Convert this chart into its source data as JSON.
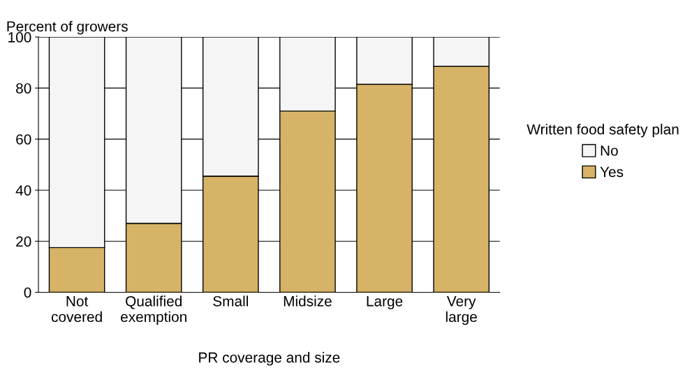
{
  "chart_data": {
    "type": "bar",
    "stacked": true,
    "categories": [
      "Not\ncovered",
      "Qualified\nexemption",
      "Small",
      "Midsize",
      "Large",
      "Very\nlarge"
    ],
    "series": [
      {
        "name": "Yes",
        "color": "#d6b366",
        "values": [
          17.5,
          27,
          45.5,
          71,
          81.5,
          88.5
        ]
      },
      {
        "name": "No",
        "color": "#f4f5f4",
        "values": [
          82.5,
          73,
          54.5,
          29,
          18.5,
          11.5
        ]
      }
    ],
    "xlabel": "PR coverage and size",
    "ylabel": "Percent of growers",
    "legend_title": "Written food safety plan",
    "ylim": [
      0,
      100
    ],
    "yticks": [
      0,
      20,
      40,
      60,
      80,
      100
    ],
    "grid": "y",
    "legend": "right"
  }
}
